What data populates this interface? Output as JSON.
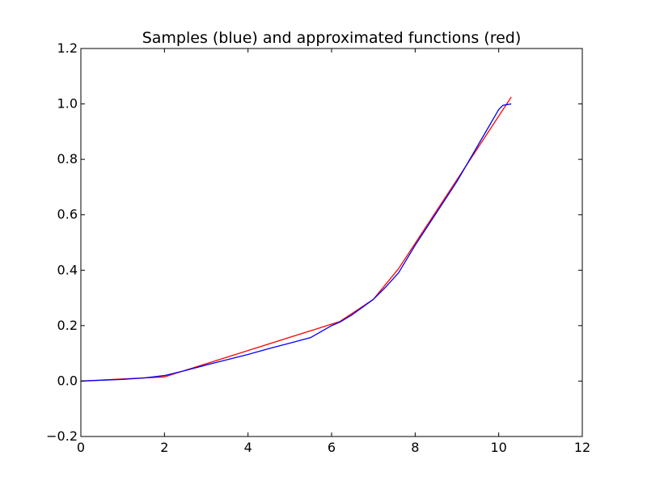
{
  "chart_data": {
    "type": "line",
    "title": "Samples (blue) and approximated functions (red)",
    "xlabel": "",
    "ylabel": "",
    "xlim": [
      0,
      12
    ],
    "ylim": [
      -0.2,
      1.2
    ],
    "xticks": [
      0,
      2,
      4,
      6,
      8,
      10,
      12
    ],
    "yticks": [
      -0.2,
      0.0,
      0.2,
      0.4,
      0.6,
      0.8,
      1.0,
      1.2
    ],
    "xtick_labels": [
      "0",
      "2",
      "4",
      "6",
      "8",
      "10",
      "12"
    ],
    "ytick_labels": [
      "−0.2",
      "0.0",
      "0.2",
      "0.4",
      "0.6",
      "0.8",
      "1.0",
      "1.2"
    ],
    "grid": false,
    "series": [
      {
        "color": "#ff0000",
        "x": [
          0,
          2,
          6.2,
          7.0,
          7.6,
          10.3
        ],
        "y": [
          0.0,
          0.015,
          0.215,
          0.295,
          0.405,
          1.025
        ]
      },
      {
        "color": "#0000ff",
        "x": [
          0,
          0.5,
          1.0,
          1.5,
          2.0,
          2.5,
          3.0,
          3.5,
          4.0,
          4.5,
          5.0,
          5.5,
          6.0,
          6.2,
          6.5,
          7.0,
          7.3,
          7.6,
          8.0,
          8.5,
          9.0,
          9.5,
          10.0,
          10.1,
          10.3
        ],
        "y": [
          0.0,
          0.003,
          0.006,
          0.011,
          0.02,
          0.038,
          0.058,
          0.077,
          0.096,
          0.117,
          0.137,
          0.157,
          0.2,
          0.213,
          0.24,
          0.295,
          0.34,
          0.39,
          0.49,
          0.605,
          0.72,
          0.85,
          0.98,
          0.995,
          1.0
        ]
      }
    ]
  }
}
